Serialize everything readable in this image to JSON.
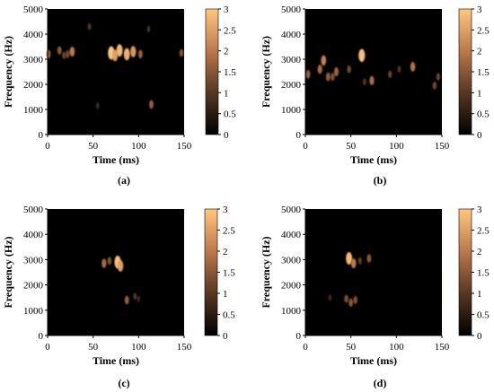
{
  "chart_data": [
    {
      "type": "heatmap",
      "caption": "(a)",
      "xlabel": "Time (ms)",
      "ylabel": "Frequency (Hz)",
      "xlim": [
        0,
        150
      ],
      "ylim": [
        0,
        5000
      ],
      "xticks": [
        0,
        50,
        100,
        150
      ],
      "yticks": [
        0,
        1000,
        2000,
        3000,
        4000,
        5000
      ],
      "colorbar": {
        "min": 0,
        "max": 3,
        "ticks": [
          "0",
          "0.5",
          "1",
          "1.5",
          "2",
          "2.5",
          "3"
        ]
      },
      "spots": [
        {
          "t": 1,
          "f": 3200,
          "v": 1.6
        },
        {
          "t": 13,
          "f": 3350,
          "v": 1.5
        },
        {
          "t": 18,
          "f": 3150,
          "v": 1.2
        },
        {
          "t": 22,
          "f": 3200,
          "v": 1.3
        },
        {
          "t": 27,
          "f": 3300,
          "v": 2.0
        },
        {
          "t": 46,
          "f": 4300,
          "v": 1.0
        },
        {
          "t": 55,
          "f": 1150,
          "v": 0.8
        },
        {
          "t": 70,
          "f": 3250,
          "v": 3.0
        },
        {
          "t": 74,
          "f": 3150,
          "v": 2.5
        },
        {
          "t": 79,
          "f": 3350,
          "v": 2.8
        },
        {
          "t": 87,
          "f": 3200,
          "v": 2.7
        },
        {
          "t": 94,
          "f": 3300,
          "v": 2.4
        },
        {
          "t": 102,
          "f": 3200,
          "v": 1.6
        },
        {
          "t": 111,
          "f": 4200,
          "v": 0.9
        },
        {
          "t": 114,
          "f": 1200,
          "v": 1.6
        },
        {
          "t": 147,
          "f": 3250,
          "v": 1.4
        }
      ]
    },
    {
      "type": "heatmap",
      "caption": "(b)",
      "xlabel": "Time (ms)",
      "ylabel": "Frequency (Hz)",
      "xlim": [
        0,
        150
      ],
      "ylim": [
        0,
        5000
      ],
      "xticks": [
        0,
        50,
        100,
        150
      ],
      "yticks": [
        0,
        1000,
        2000,
        3000,
        4000,
        5000
      ],
      "colorbar": {
        "min": 0,
        "max": 3,
        "ticks": [
          "0",
          "0.5",
          "1",
          "1.5",
          "2",
          "2.5",
          "3"
        ]
      },
      "spots": [
        {
          "t": 3,
          "f": 2400,
          "v": 1.6
        },
        {
          "t": 16,
          "f": 2600,
          "v": 1.8
        },
        {
          "t": 20,
          "f": 2950,
          "v": 2.1
        },
        {
          "t": 25,
          "f": 2300,
          "v": 1.6
        },
        {
          "t": 30,
          "f": 2300,
          "v": 1.4
        },
        {
          "t": 34,
          "f": 2500,
          "v": 1.7
        },
        {
          "t": 48,
          "f": 2600,
          "v": 1.3
        },
        {
          "t": 62,
          "f": 3150,
          "v": 2.9
        },
        {
          "t": 65,
          "f": 2100,
          "v": 1.0
        },
        {
          "t": 73,
          "f": 2150,
          "v": 1.8
        },
        {
          "t": 93,
          "f": 2400,
          "v": 1.2
        },
        {
          "t": 103,
          "f": 2600,
          "v": 1.0
        },
        {
          "t": 118,
          "f": 2700,
          "v": 1.9
        },
        {
          "t": 142,
          "f": 1950,
          "v": 1.3
        },
        {
          "t": 146,
          "f": 2300,
          "v": 1.2
        }
      ]
    },
    {
      "type": "heatmap",
      "caption": "(c)",
      "xlabel": "Time (ms)",
      "ylabel": "Frequency (Hz)",
      "xlim": [
        0,
        150
      ],
      "ylim": [
        0,
        5000
      ],
      "xticks": [
        0,
        50,
        100,
        150
      ],
      "yticks": [
        0,
        1000,
        2000,
        3000,
        4000,
        5000
      ],
      "colorbar": {
        "min": 0,
        "max": 3,
        "ticks": [
          "0",
          "0.5",
          "1",
          "1.5",
          "2",
          "2.5",
          "3"
        ]
      },
      "spots": [
        {
          "t": 62,
          "f": 2850,
          "v": 1.8
        },
        {
          "t": 68,
          "f": 2950,
          "v": 1.4
        },
        {
          "t": 77,
          "f": 2900,
          "v": 2.9
        },
        {
          "t": 80,
          "f": 2750,
          "v": 2.5
        },
        {
          "t": 87,
          "f": 1400,
          "v": 1.6
        },
        {
          "t": 96,
          "f": 1550,
          "v": 1.0
        },
        {
          "t": 100,
          "f": 1450,
          "v": 0.8
        }
      ]
    },
    {
      "type": "heatmap",
      "caption": "(d)",
      "xlabel": "Time (ms)",
      "ylabel": "Frequency (Hz)",
      "xlim": [
        0,
        150
      ],
      "ylim": [
        0,
        5000
      ],
      "xticks": [
        0,
        50,
        100,
        150
      ],
      "yticks": [
        0,
        1000,
        2000,
        3000,
        4000,
        5000
      ],
      "colorbar": {
        "min": 0,
        "max": 3,
        "ticks": [
          "0",
          "0.5",
          "1",
          "1.5",
          "2",
          "2.5",
          "3"
        ]
      },
      "spots": [
        {
          "t": 27,
          "f": 1500,
          "v": 0.8
        },
        {
          "t": 45,
          "f": 1450,
          "v": 1.4
        },
        {
          "t": 48,
          "f": 3050,
          "v": 2.8
        },
        {
          "t": 50,
          "f": 1300,
          "v": 1.5
        },
        {
          "t": 53,
          "f": 2850,
          "v": 2.0
        },
        {
          "t": 55,
          "f": 1400,
          "v": 1.4
        },
        {
          "t": 60,
          "f": 2950,
          "v": 1.1
        },
        {
          "t": 70,
          "f": 3050,
          "v": 1.5
        }
      ]
    }
  ]
}
